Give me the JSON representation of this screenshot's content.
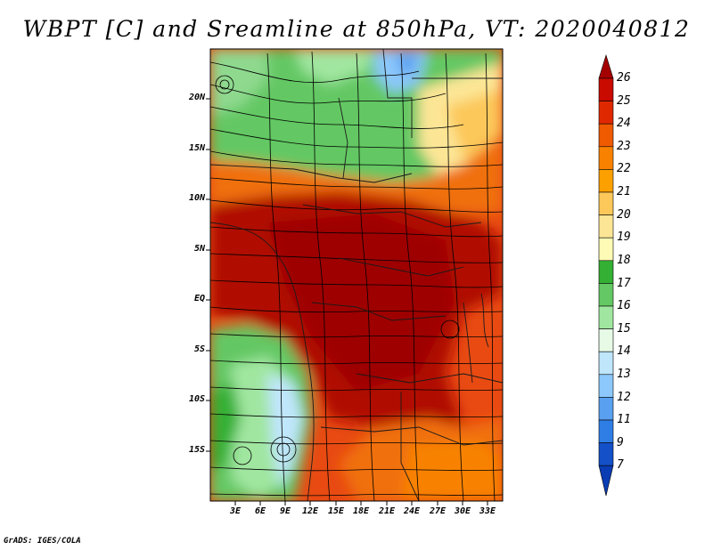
{
  "map": {
    "title": "WBPT [C] and Sreamline at 850hPa, VT: 2020040812",
    "credit": "GrADS: IGES/COLA",
    "variable": "Wet-bulb potential temperature",
    "units": "C",
    "level": "850hPa",
    "valid_time": "2020040812",
    "lat_labels": [
      "20N",
      "15N",
      "10N",
      "5N",
      "EQ",
      "5S",
      "10S",
      "15S"
    ],
    "lon_labels": [
      "3E",
      "6E",
      "9E",
      "12E",
      "15E",
      "18E",
      "21E",
      "24E",
      "27E",
      "30E",
      "33E"
    ],
    "colorbar": {
      "labels": [
        "26",
        "25",
        "24",
        "23",
        "22",
        "21",
        "20",
        "19",
        "18",
        "17",
        "16",
        "15",
        "14",
        "13",
        "12",
        "11",
        "9",
        "7"
      ],
      "colors": [
        "#a50000",
        "#c80a00",
        "#e02800",
        "#f05a00",
        "#f88200",
        "#fca000",
        "#fcc85a",
        "#fce696",
        "#fcfab4",
        "#34b034",
        "#64c864",
        "#a0e6a0",
        "#e6fae6",
        "#c0e6fc",
        "#8cc8fc",
        "#5aa0f0",
        "#2f7ee6",
        "#1450c8",
        "#0a3cb4"
      ]
    }
  }
}
